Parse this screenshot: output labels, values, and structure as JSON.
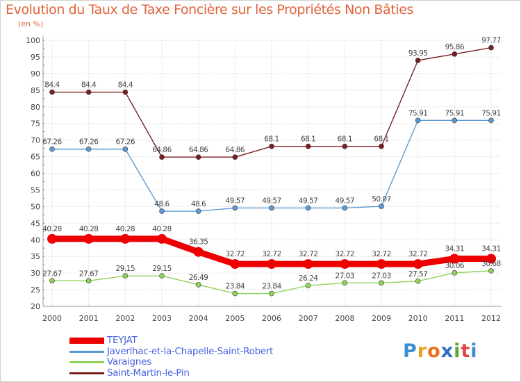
{
  "title": "Evolution du Taux de Taxe Foncière sur les Propriétés Non Bâties",
  "unit": "(en %)",
  "logo": {
    "letters": [
      "P",
      "r",
      "o",
      "x",
      "i",
      "t",
      "i"
    ],
    "colors": [
      "#3a8fd0",
      "#e8a21b",
      "#e8701b",
      "#2c6fc0",
      "#5aaa2f",
      "#e0454a",
      "#3a8fd0"
    ]
  },
  "chart_data": {
    "type": "line",
    "title": "Evolution du Taux de Taxe Foncière sur les Propriétés Non Bâties",
    "ylabel": "(en %)",
    "x": [
      "2000",
      "2001",
      "2002",
      "2003",
      "2004",
      "2005",
      "2006",
      "2007",
      "2008",
      "2009",
      "2010",
      "2011",
      "2012"
    ],
    "ylim": [
      20,
      100
    ],
    "yticks": [
      "20",
      "25",
      "30",
      "35",
      "40",
      "45",
      "50",
      "55",
      "60",
      "65",
      "70",
      "75",
      "80",
      "85",
      "90",
      "95",
      "100"
    ],
    "grid": true,
    "legend_position": "bottom-left",
    "series": [
      {
        "name": "Saint-Martin-le-Pin",
        "color": "#7a1f1f",
        "values": [
          84.4,
          84.4,
          84.4,
          64.86,
          64.86,
          64.86,
          68.1,
          68.1,
          68.1,
          68.1,
          93.95,
          95.86,
          97.77
        ],
        "labels": [
          "84.4",
          "84.4",
          "84.4",
          "64.86",
          "64.86",
          "64.86",
          "68.1",
          "68.1",
          "68.1",
          "68.1",
          "93.95",
          "95.86",
          "97.77"
        ]
      },
      {
        "name": "Javerlhac-et-la-Chapelle-Saint-Robert",
        "color": "#5c9ad4",
        "values": [
          67.26,
          67.26,
          67.26,
          48.6,
          48.6,
          49.57,
          49.57,
          49.57,
          49.57,
          50.07,
          75.91,
          75.91,
          75.91
        ],
        "labels": [
          "67.26",
          "67.26",
          "67.26",
          "48.6",
          "48.6",
          "49.57",
          "49.57",
          "49.57",
          "49.57",
          "50.07",
          "75.91",
          "75.91",
          "75.91"
        ]
      },
      {
        "name": "TEYJAT",
        "color": "#ee0000",
        "values": [
          40.28,
          40.28,
          40.28,
          40.28,
          36.35,
          32.72,
          32.72,
          32.72,
          32.72,
          32.72,
          32.72,
          34.31,
          34.31
        ],
        "labels": [
          "40.28",
          "40.28",
          "40.28",
          "40.28",
          "36.35",
          "32.72",
          "32.72",
          "32.72",
          "32.72",
          "32.72",
          "32.72",
          "34.31",
          "34.31"
        ]
      },
      {
        "name": "Varaignes",
        "color": "#8fd35a",
        "values": [
          27.67,
          27.67,
          29.15,
          29.15,
          26.49,
          23.84,
          23.84,
          26.24,
          27.03,
          27.03,
          27.57,
          30.06,
          30.68
        ],
        "labels": [
          "27.67",
          "27.67",
          "29.15",
          "29.15",
          "26.49",
          "23.84",
          "23.84",
          "26.24",
          "27.03",
          "27.03",
          "27.57",
          "30.06",
          "30.68"
        ]
      }
    ],
    "legend": [
      {
        "name": "TEYJAT",
        "color": "#ee0000"
      },
      {
        "name": "Javerlhac-et-la-Chapelle-Saint-Robert",
        "color": "#5c9ad4"
      },
      {
        "name": "Varaignes",
        "color": "#8fd35a"
      },
      {
        "name": "Saint-Martin-le-Pin",
        "color": "#7a1f1f"
      }
    ]
  }
}
